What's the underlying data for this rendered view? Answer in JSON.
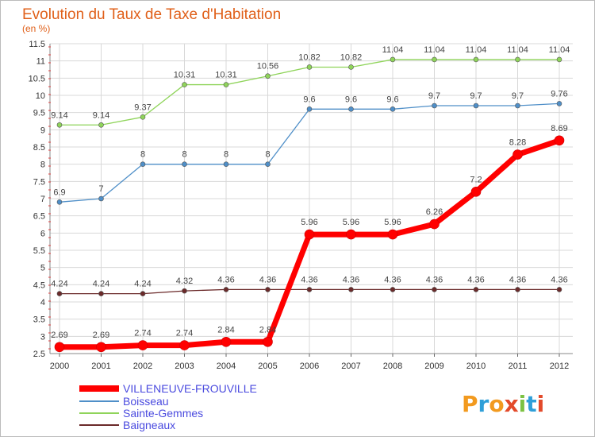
{
  "chart_data": {
    "type": "line",
    "title": "Evolution du Taux de Taxe d'Habitation",
    "subtitle": "(en %)",
    "x": [
      "2000",
      "2001",
      "2002",
      "2003",
      "2004",
      "2005",
      "2006",
      "2007",
      "2008",
      "2009",
      "2010",
      "2011",
      "2012"
    ],
    "ylim": [
      2.5,
      11.5
    ],
    "yticks": [
      "2.5",
      "3",
      "3.5",
      "4",
      "4.5",
      "5",
      "5.5",
      "6",
      "6.5",
      "7",
      "7.5",
      "8",
      "8.5",
      "9",
      "9.5",
      "10",
      "10.5",
      "11",
      "11.5"
    ],
    "grid": true,
    "legend_placement": "bottom-left",
    "series": [
      {
        "name": "VILLENEUVE-FROUVILLE",
        "color": "#ff0000",
        "values": [
          2.69,
          2.69,
          2.74,
          2.74,
          2.84,
          2.84,
          5.96,
          5.96,
          5.96,
          6.26,
          7.2,
          8.28,
          8.69
        ],
        "labels": [
          "2.69",
          "2.69",
          "2.74",
          "2.74",
          "2.84",
          "2.84",
          "5.96",
          "5.96",
          "5.96",
          "6.26",
          "7.2",
          "8.28",
          "8.69"
        ]
      },
      {
        "name": "Boisseau",
        "color": "#4f8fc8",
        "values": [
          6.9,
          7,
          8,
          8,
          8,
          8,
          9.6,
          9.6,
          9.6,
          9.7,
          9.7,
          9.7,
          9.76
        ],
        "labels": [
          "6.9",
          "7",
          "8",
          "8",
          "8",
          "8",
          "9.6",
          "9.6",
          "9.6",
          "9.7",
          "9.7",
          "9.7",
          "9.76"
        ]
      },
      {
        "name": "Sainte-Gemmes",
        "color": "#8fd45a",
        "values": [
          9.14,
          9.14,
          9.37,
          10.31,
          10.31,
          10.56,
          10.82,
          10.82,
          11.04,
          11.04,
          11.04,
          11.04,
          11.04
        ],
        "labels": [
          "9.14",
          "9.14",
          "9.37",
          "10.31",
          "10.31",
          "10.56",
          "10.82",
          "10.82",
          "11.04",
          "11.04",
          "11.04",
          "11.04",
          "11.04"
        ]
      },
      {
        "name": "Baigneaux",
        "color": "#6b2a2a",
        "values": [
          4.24,
          4.24,
          4.24,
          4.32,
          4.36,
          4.36,
          4.36,
          4.36,
          4.36,
          4.36,
          4.36,
          4.36,
          4.36
        ],
        "labels": [
          "4.24",
          "4.24",
          "4.24",
          "4.32",
          "4.36",
          "4.36",
          "4.36",
          "4.36",
          "4.36",
          "4.36",
          "4.36",
          "4.36",
          "4.36"
        ]
      }
    ]
  },
  "logo": {
    "text": "Proxiti"
  }
}
